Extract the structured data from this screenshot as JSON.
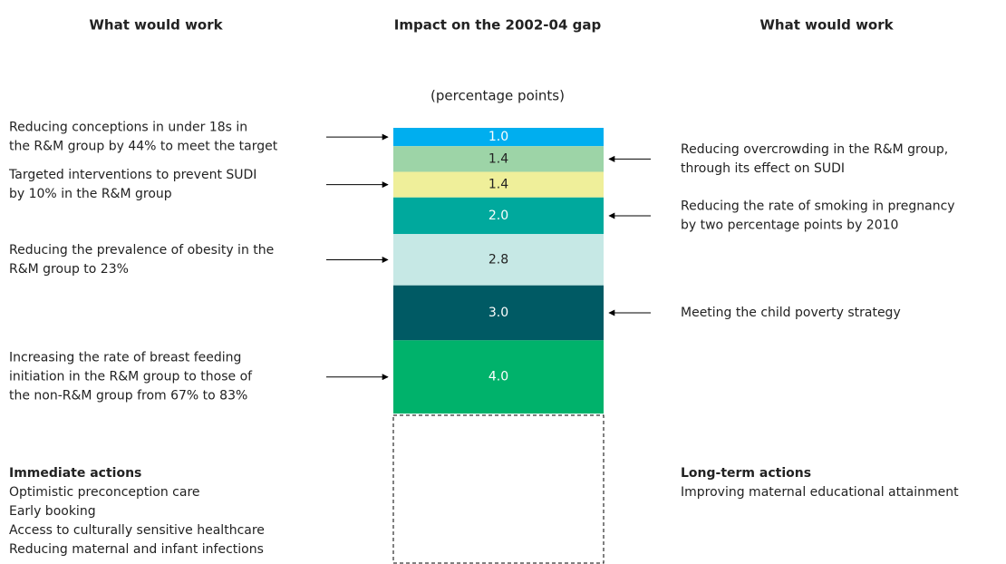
{
  "chart_data": {
    "type": "stacked_bar",
    "headers": [
      "What would work",
      "Impact on the 2002-04 gap",
      "What would work"
    ],
    "subtitle": "(percentage points)",
    "series": [
      {
        "name": [
          "Reducing conceptions in under 18s in",
          "the R&M group by 44% to meet the target"
        ],
        "side": "left",
        "color": "#00aeef",
        "text_color": "#ffffff",
        "values": [
          1.0
        ],
        "value_labels": [
          "1.0"
        ]
      },
      {
        "name": [
          "Reducing overcrowding in the R&M group,",
          "through its effect on SUDI"
        ],
        "side": "right",
        "color": "#9dd4a7",
        "text_color": "#222222",
        "values": [
          1.4
        ],
        "value_labels": [
          "1.4"
        ]
      },
      {
        "name": [
          "Targeted interventions to prevent SUDI",
          "by 10% in the R&M group"
        ],
        "side": "left",
        "color": "#efef9a",
        "text_color": "#222222",
        "values": [
          1.4
        ],
        "value_labels": [
          "1.4"
        ]
      },
      {
        "name": [
          "Reducing the rate of smoking in pregnancy",
          "by two percentage points by 2010"
        ],
        "side": "right",
        "color": "#00a99d",
        "text_color": "#ffffff",
        "values": [
          2.0
        ],
        "value_labels": [
          "2.0"
        ]
      },
      {
        "name": [
          "Reducing the prevalence of obesity in the",
          "R&M group to 23%"
        ],
        "side": "left",
        "color": "#c6e8e5",
        "text_color": "#222222",
        "values": [
          2.8
        ],
        "value_labels": [
          "2.8"
        ]
      },
      {
        "name": [
          "Meeting the child poverty strategy"
        ],
        "side": "right",
        "color": "#005a64",
        "text_color": "#ffffff",
        "values": [
          3.0
        ],
        "value_labels": [
          "3.0"
        ]
      },
      {
        "name": [
          "Increasing the rate of breast feeding",
          "initiation in the R&M group to those of",
          "the non-R&M group from 67% to 83%"
        ],
        "side": "left",
        "color": "#00b26b",
        "text_color": "#ffffff",
        "values": [
          4.0
        ],
        "value_labels": [
          "4.0"
        ]
      }
    ],
    "immediate": {
      "title": "Immediate actions",
      "items": [
        "Optimistic preconception care",
        "Early booking",
        "Access to culturally sensitive healthcare",
        "Reducing maternal and infant infections"
      ]
    },
    "long_term": {
      "title": "Long-term actions",
      "items": [
        "Improving maternal educational attainment"
      ]
    }
  }
}
